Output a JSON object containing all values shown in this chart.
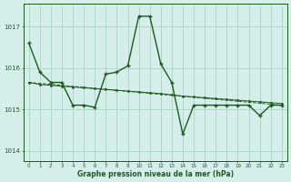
{
  "title": "Graphe pression niveau de la mer (hPa)",
  "bg_color": "#d6eeea",
  "grid_color": "#aad4c8",
  "line_color": "#1a5c1a",
  "xlim": [
    -0.5,
    23.5
  ],
  "ylim": [
    1013.75,
    1017.55
  ],
  "yticks": [
    1014,
    1015,
    1016,
    1017
  ],
  "xticks": [
    0,
    1,
    2,
    3,
    4,
    5,
    6,
    7,
    8,
    9,
    10,
    11,
    12,
    13,
    14,
    15,
    16,
    17,
    18,
    19,
    20,
    21,
    22,
    23
  ],
  "series_main": [
    1016.6,
    1015.9,
    1015.65,
    1015.65,
    1015.1,
    1015.1,
    1015.05,
    1015.85,
    1015.9,
    1016.05,
    1017.25,
    1017.25,
    1016.1,
    1015.65,
    1014.4,
    1015.1,
    1015.1,
    1015.1,
    1015.1,
    1015.1,
    1015.1,
    1014.85,
    1015.1,
    1015.1
  ],
  "series_dots": [
    1015.65,
    1015.6,
    1015.58,
    1015.56,
    1015.54,
    1015.52,
    1015.5,
    1015.48,
    1015.46,
    1015.44,
    1015.42,
    1015.4,
    1015.38,
    1015.35,
    1015.32,
    1015.3,
    1015.28,
    1015.26,
    1015.24,
    1015.22,
    1015.2,
    1015.18,
    1015.16,
    1015.14
  ],
  "trend_x": [
    0,
    23
  ],
  "trend_y": [
    1015.65,
    1015.1
  ]
}
